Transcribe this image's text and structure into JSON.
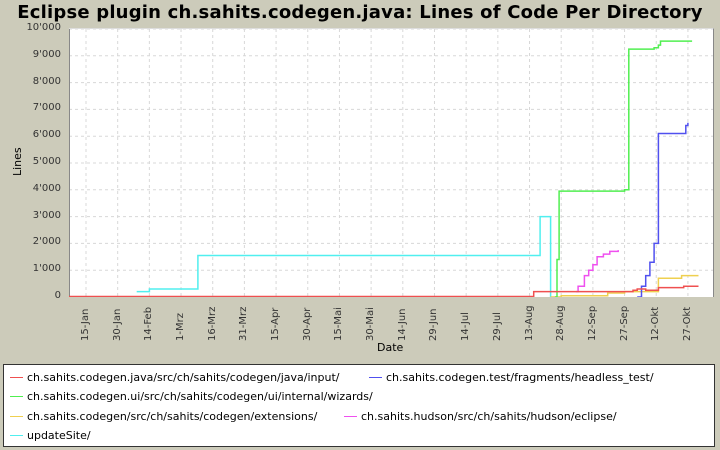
{
  "chart_data": {
    "type": "line",
    "title": "Eclipse plugin ch.sahits.codegen.java: Lines of Code Per Directory",
    "xlabel": "Date",
    "ylabel": "Lines",
    "ylim": [
      0,
      10000
    ],
    "y_ticks": [
      "0",
      "1'000",
      "2'000",
      "3'000",
      "4'000",
      "5'000",
      "6'000",
      "7'000",
      "8'000",
      "9'000",
      "10'000"
    ],
    "x_ticks": [
      "15-Jan",
      "30-Jan",
      "14-Feb",
      "1-Mrz",
      "16-Mrz",
      "31-Mrz",
      "15-Apr",
      "30-Apr",
      "15-Mai",
      "30-Mai",
      "14-Jun",
      "29-Jun",
      "14-Jul",
      "29-Jul",
      "13-Aug",
      "28-Aug",
      "12-Sep",
      "27-Sep",
      "12-Okt",
      "27-Okt"
    ],
    "grid": true,
    "legend_position": "bottom",
    "series": [
      {
        "name": "ch.sahits.codegen.java/src/ch/sahits/codegen/java/input/",
        "color": "#ef5050",
        "x": [
          "1-Jan",
          "15-Aug",
          "1-Okt",
          "3-Okt",
          "7-Okt",
          "13-Okt",
          "25-Okt",
          "1-Nov"
        ],
        "values": [
          0,
          200,
          250,
          300,
          250,
          350,
          400,
          400
        ]
      },
      {
        "name": "ch.sahits.codegen.test/fragments/headless_test/",
        "color": "#5050ef",
        "x": [
          "3-Okt",
          "5-Okt",
          "7-Okt",
          "9-Okt",
          "11-Okt",
          "13-Okt",
          "26-Okt",
          "27-Okt"
        ],
        "values": [
          0,
          400,
          800,
          1300,
          2000,
          6100,
          6400,
          6500
        ]
      },
      {
        "name": "ch.sahits.codegen.ui/src/ch/sahits/codegen/ui/internal/wizards/",
        "color": "#50ef50",
        "x": [
          "25-Aug",
          "26-Aug",
          "27-Aug",
          "18-Sep",
          "27-Sep",
          "29-Sep",
          "11-Okt",
          "13-Okt",
          "14-Okt",
          "29-Okt"
        ],
        "values": [
          0,
          1400,
          3950,
          3950,
          4000,
          9250,
          9300,
          9400,
          9550,
          9550
        ]
      },
      {
        "name": "ch.sahits.codegen/src/ch/sahits/codegen/extensions/",
        "color": "#efd050",
        "x": [
          "23-Aug",
          "28-Aug",
          "19-Sep",
          "27-Sep",
          "11-Okt",
          "13-Okt",
          "24-Okt",
          "1-Nov"
        ],
        "values": [
          0,
          50,
          150,
          200,
          200,
          700,
          800,
          800
        ]
      },
      {
        "name": "ch.sahits.hudson/src/ch/sahits/hudson/eclipse/",
        "color": "#ef50ef",
        "x": [
          "4-Sep",
          "5-Sep",
          "8-Sep",
          "10-Sep",
          "12-Sep",
          "14-Sep",
          "17-Sep",
          "20-Sep",
          "24-Sep"
        ],
        "values": [
          200,
          400,
          800,
          1000,
          1200,
          1500,
          1600,
          1700,
          1750
        ]
      },
      {
        "name": "updateSite/",
        "color": "#50efef",
        "x": [
          "8-Feb",
          "14-Feb",
          "9-Mrz",
          "18-Aug",
          "22-Aug",
          "23-Aug"
        ],
        "values": [
          200,
          300,
          1550,
          3000,
          3000,
          0
        ]
      }
    ]
  },
  "legend": {
    "items": [
      {
        "label": "ch.sahits.codegen.java/src/ch/sahits/codegen/java/input/",
        "color": "#ef5050"
      },
      {
        "label": "ch.sahits.codegen.test/fragments/headless_test/",
        "color": "#5050ef"
      },
      {
        "label": "ch.sahits.codegen.ui/src/ch/sahits/codegen/ui/internal/wizards/",
        "color": "#50ef50"
      },
      {
        "label": "ch.sahits.codegen/src/ch/sahits/codegen/extensions/",
        "color": "#efd050"
      },
      {
        "label": "ch.sahits.hudson/src/ch/sahits/hudson/eclipse/",
        "color": "#ef50ef"
      },
      {
        "label": "updateSite/",
        "color": "#50efef"
      }
    ]
  }
}
